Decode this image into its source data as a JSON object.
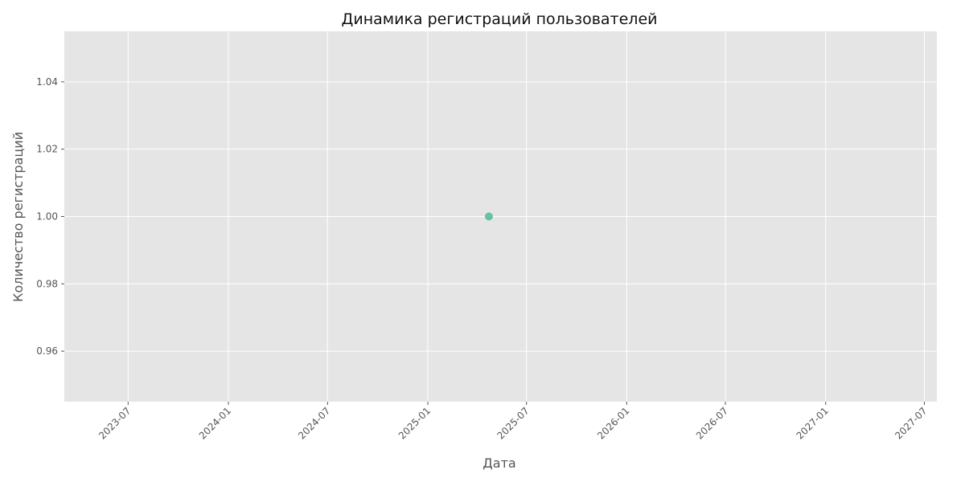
{
  "chart_data": {
    "type": "scatter",
    "title": "Динамика регистраций пользователей",
    "xlabel": "Дата",
    "ylabel": "Количество регистраций",
    "x_axis_type": "date",
    "xlim": [
      "2023-03-06",
      "2027-07-24"
    ],
    "ylim": [
      0.945,
      1.055
    ],
    "x_ticks": [
      "2023-07",
      "2024-01",
      "2024-07",
      "2025-01",
      "2025-07",
      "2026-01",
      "2026-07",
      "2027-01",
      "2027-07"
    ],
    "y_ticks": [
      "0.96",
      "0.98",
      "1.00",
      "1.02",
      "1.04"
    ],
    "grid": true,
    "legend": "none",
    "points": [
      {
        "x": "2025-04-23",
        "y": 1.0
      }
    ],
    "colors": {
      "background": "#e5e5e5",
      "grid": "#ffffff",
      "point": "#66c2a5",
      "tick_text": "#555555",
      "title_text": "#111111"
    }
  }
}
